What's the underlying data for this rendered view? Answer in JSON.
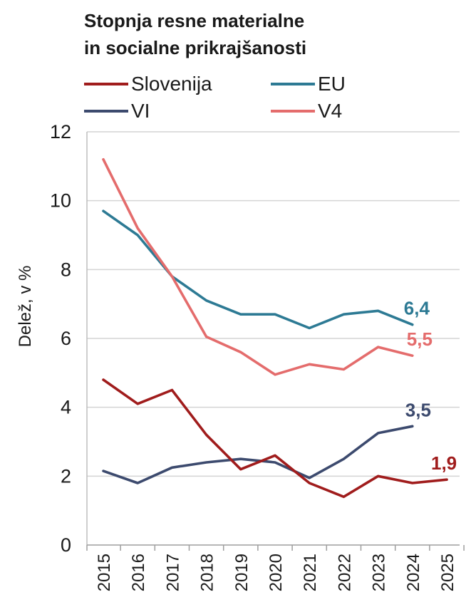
{
  "chart_data": {
    "type": "line",
    "title": "Stopnja resne materialne in socialne prikrajšanosti",
    "title_lines": [
      "Stopnja resne materialne",
      "in socialne prikrajšanosti"
    ],
    "xlabel": "",
    "ylabel": "Delež, v %",
    "ylim": [
      0,
      12
    ],
    "yticks": [
      "0",
      "2",
      "4",
      "6",
      "8",
      "10",
      "12"
    ],
    "categories": [
      "2015",
      "2016",
      "2017",
      "2018",
      "2019",
      "2020",
      "2021",
      "2022",
      "2023",
      "2024",
      "2025"
    ],
    "grid": true,
    "legend_position": "top",
    "series": [
      {
        "name": "Slovenija",
        "color": "#a01c1c",
        "values": [
          4.8,
          4.1,
          4.5,
          3.2,
          2.2,
          2.6,
          1.8,
          1.4,
          2.0,
          1.8,
          1.9
        ],
        "end_label": "1,9"
      },
      {
        "name": "EU",
        "color": "#2d7a94",
        "values": [
          9.7,
          9.0,
          7.8,
          7.1,
          6.7,
          6.7,
          6.3,
          6.7,
          6.8,
          6.4,
          null
        ],
        "end_label": "6,4"
      },
      {
        "name": "VI",
        "color": "#3c4a6e",
        "values": [
          2.15,
          1.8,
          2.25,
          2.4,
          2.5,
          2.4,
          1.95,
          2.5,
          3.25,
          3.45,
          null
        ],
        "end_label": "3,5"
      },
      {
        "name": "V4",
        "color": "#e46c6c",
        "values": [
          11.2,
          9.2,
          7.8,
          6.05,
          5.6,
          4.95,
          5.25,
          5.1,
          5.75,
          5.5,
          null
        ],
        "end_label": "5,5"
      }
    ]
  }
}
